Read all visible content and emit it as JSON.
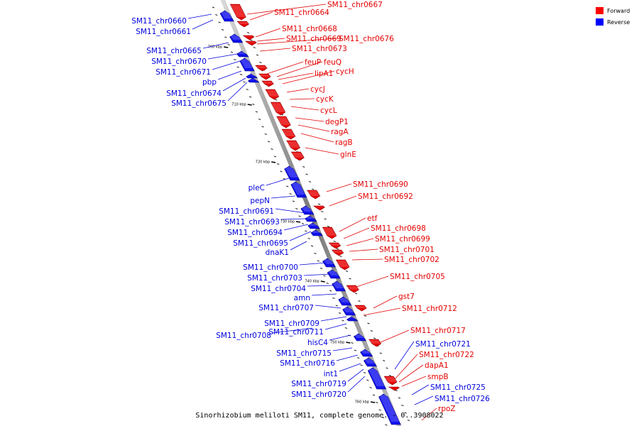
{
  "caption": "Sinorhizobium meliloti SM11, complete genome. - 0..3908022",
  "legend": [
    {
      "label": "Forward",
      "color": "#ff0000"
    },
    {
      "label": "Reverse",
      "color": "#0000ff"
    }
  ],
  "ticks": [
    "700 kbp",
    "710 kbp",
    "720 kbp",
    "730 kbp",
    "740 kbp",
    "750 kbp",
    "760 kbp"
  ],
  "forward_genes": [
    "SM11_chr0664",
    "SM11_chr0667",
    "SM11_chr0668",
    "SM11_chr0669",
    "SM11_chr0676",
    "SM11_chr0673",
    "feuP",
    "feuQ",
    "lipA1",
    "cycH",
    "cycJ",
    "cycK",
    "cycL",
    "degP1",
    "ragA",
    "ragB",
    "glnE",
    "SM11_chr0690",
    "SM11_chr0692",
    "etf",
    "SM11_chr0698",
    "SM11_chr0699",
    "SM11_chr0701",
    "SM11_chr0702",
    "SM11_chr0705",
    "gst7",
    "SM11_chr0712",
    "SM11_chr0717",
    "SM11_chr0722",
    "dapA1",
    "smpB",
    "rpoZ"
  ],
  "reverse_genes": [
    "SM11_chr0660",
    "SM11_chr0661",
    "SM11_chr0665",
    "SM11_chr0670",
    "SM11_chr0671",
    "pbp",
    "SM11_chr0674",
    "SM11_chr0675",
    "pleC",
    "pepN",
    "SM11_chr0691",
    "SM11_chr0693",
    "SM11_chr0694",
    "SM11_chr0695",
    "dnaK1",
    "SM11_chr0700",
    "SM11_chr0703",
    "SM11_chr0704",
    "amn",
    "SM11_chr0707",
    "SM11_chr0709",
    "SM11_chr0711",
    "SM11_chr0708",
    "hisC4",
    "SM11_chr0715",
    "SM11_chr0716",
    "int1",
    "SM11_chr0719",
    "SM11_chr0720",
    "SM11_chr0721",
    "SM11_chr0725",
    "SM11_chr0726"
  ]
}
